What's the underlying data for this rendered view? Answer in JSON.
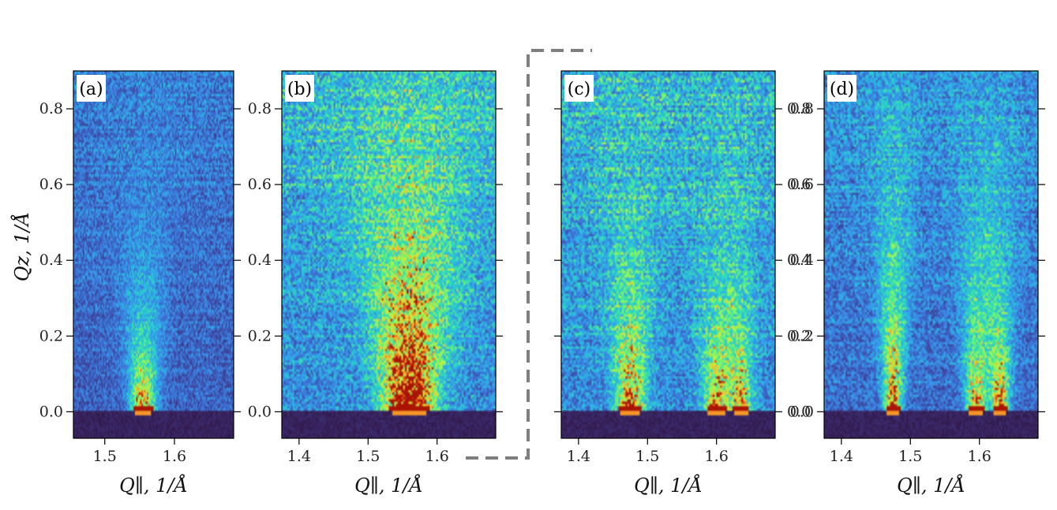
{
  "chart_data": [
    {
      "type": "heatmap",
      "panel_label": "(a)",
      "xlabel": "Q∥, 1/Å",
      "ylabel": "Qz, 1/Å",
      "xlim": [
        1.455,
        1.685
      ],
      "ylim": [
        -0.07,
        0.9
      ],
      "xticks": [
        1.5,
        1.6
      ],
      "xtick_labels": [
        "1.5",
        "1.6"
      ],
      "yticks": [
        0.0,
        0.2,
        0.4,
        0.6,
        0.8
      ],
      "ytick_labels": [
        "0.0",
        "0.2",
        "0.4",
        "0.6",
        "0.8"
      ],
      "peaks": [
        {
          "q": 1.555,
          "height": 0.22,
          "width": 0.012,
          "intensity": 0.85
        }
      ],
      "background_level": 0.28,
      "colormap": "turbo"
    },
    {
      "type": "heatmap",
      "panel_label": "(b)",
      "xlabel": "Q∥, 1/Å",
      "ylabel": "",
      "xlim": [
        1.375,
        1.685
      ],
      "ylim": [
        -0.07,
        0.9
      ],
      "xticks": [
        1.4,
        1.5,
        1.6
      ],
      "xtick_labels": [
        "1.4",
        "1.5",
        "1.6"
      ],
      "yticks": [
        0.0,
        0.2,
        0.4,
        0.6,
        0.8
      ],
      "ytick_labels": [
        "0.0",
        "0.2",
        "0.4",
        "0.6",
        "0.8"
      ],
      "peaks": [
        {
          "q": 1.56,
          "height": 0.42,
          "width": 0.025,
          "intensity": 1.0
        }
      ],
      "background_level": 0.42,
      "colormap": "turbo"
    },
    {
      "type": "heatmap",
      "panel_label": "(c)",
      "xlabel": "Q∥, 1/Å",
      "ylabel": "",
      "xlim": [
        1.375,
        1.685
      ],
      "ylim": [
        -0.07,
        0.9
      ],
      "xticks": [
        1.4,
        1.5,
        1.6
      ],
      "xtick_labels": [
        "1.4",
        "1.5",
        "1.6"
      ],
      "yticks": [
        0.0,
        0.2,
        0.4,
        0.6,
        0.8
      ],
      "ytick_labels": [
        "0.0",
        "0.2",
        "0.4",
        "0.6",
        "0.8"
      ],
      "peaks": [
        {
          "q": 1.475,
          "height": 0.3,
          "width": 0.014,
          "intensity": 0.75
        },
        {
          "q": 1.6,
          "height": 0.25,
          "width": 0.012,
          "intensity": 0.7
        },
        {
          "q": 1.635,
          "height": 0.22,
          "width": 0.01,
          "intensity": 0.7
        }
      ],
      "background_level": 0.42,
      "colormap": "turbo"
    },
    {
      "type": "heatmap",
      "panel_label": "(d)",
      "xlabel": "Q∥, 1/Å",
      "ylabel": "",
      "xlim": [
        1.375,
        1.685
      ],
      "ylim": [
        -0.07,
        0.9
      ],
      "xticks": [
        1.4,
        1.5,
        1.6
      ],
      "xtick_labels": [
        "1.4",
        "1.5",
        "1.6"
      ],
      "yticks": [
        0.0,
        0.2,
        0.4,
        0.6,
        0.8
      ],
      "ytick_labels": [
        "0.0",
        "0.2",
        "0.4",
        "0.6",
        "0.8"
      ],
      "peaks": [
        {
          "q": 1.475,
          "height": 0.36,
          "width": 0.009,
          "intensity": 0.85
        },
        {
          "q": 1.595,
          "height": 0.3,
          "width": 0.01,
          "intensity": 0.75
        },
        {
          "q": 1.63,
          "height": 0.26,
          "width": 0.009,
          "intensity": 0.85
        }
      ],
      "background_level": 0.33,
      "colormap": "turbo"
    }
  ],
  "connector": {
    "style": "dashed",
    "color": "#7f7f7f"
  }
}
